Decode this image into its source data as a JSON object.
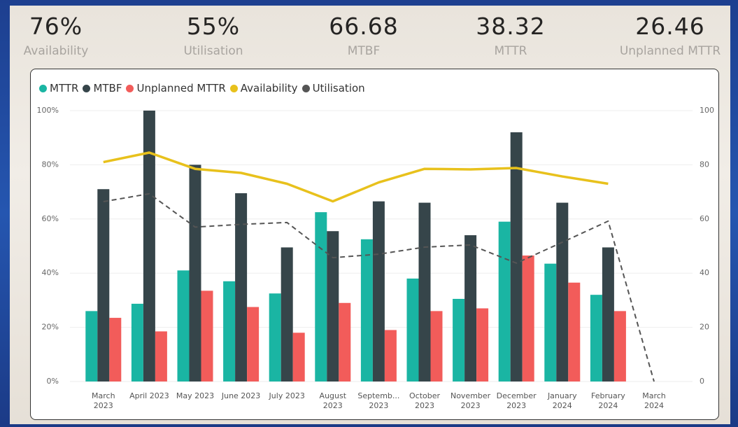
{
  "kpis": [
    {
      "value": "76%",
      "label": "Availability"
    },
    {
      "value": "55%",
      "label": "Utilisation"
    },
    {
      "value": "66.68",
      "label": "MTBF"
    },
    {
      "value": "38.32",
      "label": "MTTR"
    },
    {
      "value": "26.46",
      "label": "Unplanned MTTR"
    }
  ],
  "chart_data": {
    "type": "bar",
    "categories": [
      "March 2023",
      "April 2023",
      "May 2023",
      "June 2023",
      "July 2023",
      "August 2023",
      "Septemb... 2023",
      "October 2023",
      "November 2023",
      "December 2023",
      "January 2024",
      "February 2024",
      "March 2024"
    ],
    "series": [
      {
        "name": "MTTR",
        "type": "bar",
        "axis": "y2",
        "color": "#1ab5a3",
        "values": [
          26,
          28.7,
          41,
          37,
          32.5,
          62.5,
          52.5,
          38,
          30.5,
          59,
          43.5,
          32,
          null
        ]
      },
      {
        "name": "MTBF",
        "type": "bar",
        "axis": "y2",
        "color": "#36454a",
        "values": [
          71,
          100,
          80,
          69.5,
          49.5,
          55.5,
          66.5,
          66,
          54,
          92,
          66,
          49.5,
          null
        ]
      },
      {
        "name": "Unplanned MTTR",
        "type": "bar",
        "axis": "y2",
        "color": "#f25c5a",
        "values": [
          23.5,
          18.5,
          33.5,
          27.5,
          18,
          29,
          19,
          26,
          27,
          46.5,
          36.5,
          26,
          null
        ]
      },
      {
        "name": "Availability",
        "type": "line",
        "axis": "y",
        "color": "#e8c11c",
        "values": [
          81,
          84.5,
          78.5,
          77,
          73,
          66.5,
          73.5,
          78.5,
          78.3,
          78.8,
          75.7,
          73,
          null
        ]
      },
      {
        "name": "Utilisation",
        "type": "line",
        "dashed": true,
        "axis": "y",
        "color": "#555555",
        "values": [
          66.4,
          69.3,
          57,
          58,
          58.7,
          45.7,
          47,
          49.6,
          50.4,
          43.7,
          51.4,
          59.2,
          0
        ]
      }
    ],
    "ylim": [
      0,
      100
    ],
    "yticks": [
      {
        "value": 0,
        "label": "0%"
      },
      {
        "value": 20,
        "label": "20%"
      },
      {
        "value": 40,
        "label": "40%"
      },
      {
        "value": 60,
        "label": "60%"
      },
      {
        "value": 80,
        "label": "80%"
      },
      {
        "value": 100,
        "label": "100%"
      }
    ],
    "y2lim": [
      0,
      100
    ],
    "y2ticks": [
      0,
      20,
      40,
      60,
      80,
      100
    ],
    "grid": true,
    "legend": "top-left"
  }
}
